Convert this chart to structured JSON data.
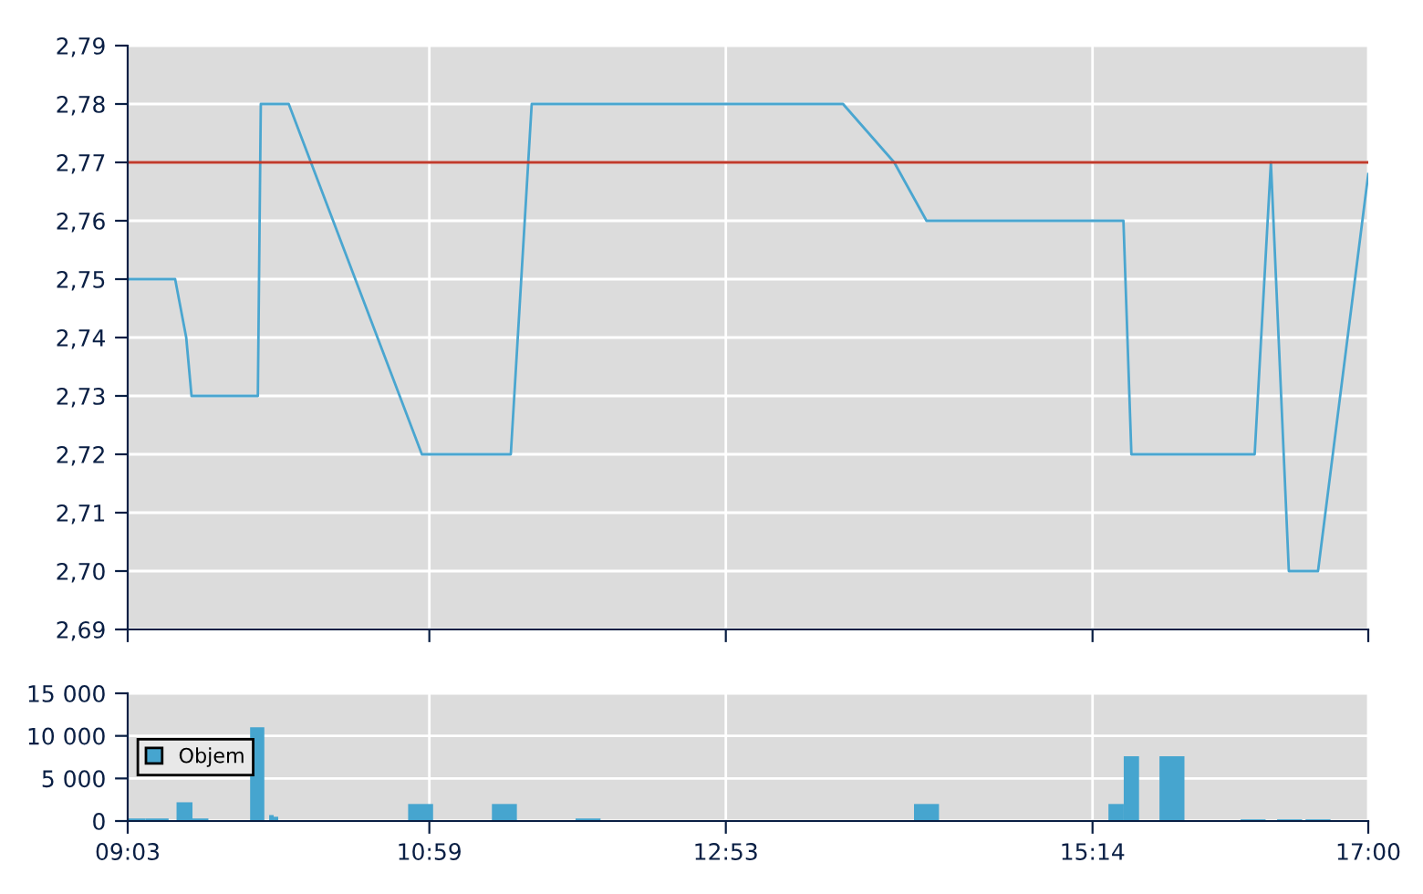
{
  "chart_data": [
    {
      "type": "line",
      "x": [
        9.05,
        9.354,
        9.425,
        9.459,
        9.884,
        9.903,
        10.082,
        10.935,
        11.505,
        11.639,
        13.634,
        13.962,
        14.169,
        15.431,
        15.482,
        16.272,
        16.376,
        16.491,
        16.678,
        17.0
      ],
      "series": [
        {
          "color": "#4aa6d0",
          "values": [
            2.75,
            2.75,
            2.74,
            2.73,
            2.73,
            2.78,
            2.78,
            2.72,
            2.72,
            2.78,
            2.78,
            2.77,
            2.76,
            2.76,
            2.72,
            2.72,
            2.77,
            2.7,
            2.7,
            2.768
          ]
        }
      ],
      "xlim": [
        9.05,
        17.0
      ],
      "xticks": [
        {
          "value": 9.05,
          "label": null
        },
        {
          "value": 10.983,
          "label": null
        },
        {
          "value": 12.883,
          "label": null
        },
        {
          "value": 15.233,
          "label": null
        },
        {
          "value": 17.0,
          "label": null
        }
      ],
      "ylim": [
        2.69,
        2.79
      ],
      "yticks": [
        {
          "value": 2.69,
          "label": "2,69"
        },
        {
          "value": 2.7,
          "label": "2,70"
        },
        {
          "value": 2.71,
          "label": "2,71"
        },
        {
          "value": 2.72,
          "label": "2,72"
        },
        {
          "value": 2.73,
          "label": "2,73"
        },
        {
          "value": 2.74,
          "label": "2,74"
        },
        {
          "value": 2.75,
          "label": "2,75"
        },
        {
          "value": 2.76,
          "label": "2,76"
        },
        {
          "value": 2.77,
          "label": "2,77"
        },
        {
          "value": 2.78,
          "label": "2,78"
        },
        {
          "value": 2.79,
          "label": "2,79"
        }
      ],
      "ref_lines": [
        {
          "axis": "y",
          "value": 2.77,
          "color": "#c03a2b"
        }
      ],
      "grid": true,
      "tick_labels": "y",
      "line_style": "solid",
      "marker": "none",
      "legend": false
    },
    {
      "type": "bar",
      "x": [
        9.09,
        9.238,
        9.414,
        9.516,
        9.88,
        9.971,
        10.0,
        10.927,
        11.464,
        12.0,
        14.169,
        15.384,
        15.482,
        15.742,
        16.262,
        16.496,
        16.678
      ],
      "series": [
        {
          "name": "Objem",
          "color": "#46a5cf",
          "values": [
            300,
            300,
            2200,
            300,
            11000,
            700,
            500,
            2000,
            2000,
            300,
            2000,
            2000,
            7600,
            7600,
            200,
            200,
            200
          ]
        }
      ],
      "xlim": [
        9.05,
        17.0
      ],
      "xticks": [
        {
          "value": 9.05,
          "label": "09:03"
        },
        {
          "value": 10.983,
          "label": "10:59"
        },
        {
          "value": 12.883,
          "label": "12:53"
        },
        {
          "value": 15.233,
          "label": "15:14"
        },
        {
          "value": 17.0,
          "label": "17:00"
        }
      ],
      "ylim": [
        0,
        15000
      ],
      "yticks": [
        0,
        {
          "value": 5000,
          "label": "5 000"
        },
        {
          "value": 10000,
          "label": "10 000"
        },
        {
          "value": 15000,
          "label": "15 000"
        }
      ],
      "grid": true,
      "legend": "left"
    }
  ]
}
